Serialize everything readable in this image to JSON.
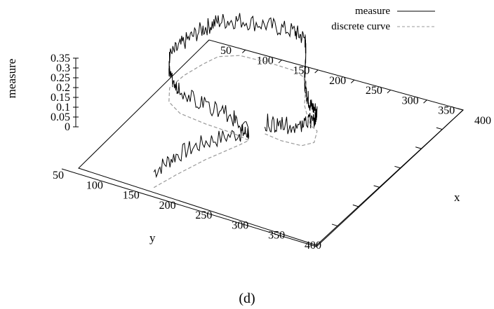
{
  "caption": "(d)",
  "chart_data": {
    "type": "line",
    "projection": "3d-surface-plot",
    "xlabel": "x",
    "ylabel": "y",
    "zlabel": "measure",
    "xlim": [
      50,
      400
    ],
    "ylim": [
      50,
      400
    ],
    "zlim": [
      0,
      0.35
    ],
    "x_ticks": [
      "50",
      "100",
      "150",
      "200",
      "250",
      "300",
      "350",
      "400"
    ],
    "y_ticks": [
      "50",
      "100",
      "150",
      "200",
      "250",
      "300",
      "350",
      "400"
    ],
    "z_ticks": [
      "0",
      "0.05",
      "0.1",
      "0.15",
      "0.2",
      "0.25",
      "0.3",
      "0.35"
    ],
    "legend": {
      "position": "top-right"
    },
    "series": [
      {
        "name": "measure",
        "style": "solid",
        "color": "#000000",
        "noisy": true,
        "points": [
          {
            "x": 155,
            "y": 60,
            "z": 0.08
          },
          {
            "x": 165,
            "y": 100,
            "z": 0.1
          },
          {
            "x": 180,
            "y": 150,
            "z": 0.09
          },
          {
            "x": 200,
            "y": 200,
            "z": 0.06
          },
          {
            "x": 205,
            "y": 215,
            "z": 0.04
          },
          {
            "x": 180,
            "y": 220,
            "z": 0.08
          },
          {
            "x": 140,
            "y": 222,
            "z": 0.1
          },
          {
            "x": 100,
            "y": 228,
            "z": 0.12
          },
          {
            "x": 75,
            "y": 245,
            "z": 0.15
          },
          {
            "x": 60,
            "y": 275,
            "z": 0.16
          },
          {
            "x": 62,
            "y": 310,
            "z": 0.17
          },
          {
            "x": 70,
            "y": 345,
            "z": 0.18
          },
          {
            "x": 78,
            "y": 370,
            "z": 0.18
          },
          {
            "x": 100,
            "y": 385,
            "z": 0.18
          },
          {
            "x": 140,
            "y": 387,
            "z": 0.19
          },
          {
            "x": 175,
            "y": 385,
            "z": 0.2
          },
          {
            "x": 195,
            "y": 376,
            "z": 0.2
          },
          {
            "x": 205,
            "y": 360,
            "z": 0.18
          },
          {
            "x": 215,
            "y": 340,
            "z": 0.15
          },
          {
            "x": 225,
            "y": 320,
            "z": 0.12
          },
          {
            "x": 240,
            "y": 300,
            "z": 0.1
          },
          {
            "x": 255,
            "y": 282,
            "z": 0.1
          },
          {
            "x": 268,
            "y": 275,
            "z": 0.1
          },
          {
            "x": 278,
            "y": 250,
            "z": 0.12
          },
          {
            "x": 268,
            "y": 236,
            "z": 0.1
          },
          {
            "x": 240,
            "y": 234,
            "z": 0.08
          },
          {
            "x": 215,
            "y": 238,
            "z": 0.06
          }
        ]
      },
      {
        "name": "discrete curve",
        "style": "dashed",
        "color": "#999999",
        "points": [
          {
            "x": 155,
            "y": 60,
            "z": 0.0
          },
          {
            "x": 165,
            "y": 100,
            "z": 0.0
          },
          {
            "x": 180,
            "y": 150,
            "z": 0.0
          },
          {
            "x": 200,
            "y": 200,
            "z": 0.0
          },
          {
            "x": 205,
            "y": 215,
            "z": 0.0
          },
          {
            "x": 180,
            "y": 220,
            "z": 0.0
          },
          {
            "x": 140,
            "y": 222,
            "z": 0.0
          },
          {
            "x": 100,
            "y": 228,
            "z": 0.0
          },
          {
            "x": 75,
            "y": 245,
            "z": 0.0
          },
          {
            "x": 60,
            "y": 275,
            "z": 0.0
          },
          {
            "x": 62,
            "y": 310,
            "z": 0.0
          },
          {
            "x": 70,
            "y": 345,
            "z": 0.0
          },
          {
            "x": 78,
            "y": 370,
            "z": 0.0
          },
          {
            "x": 100,
            "y": 385,
            "z": 0.0
          },
          {
            "x": 140,
            "y": 387,
            "z": 0.0
          },
          {
            "x": 175,
            "y": 385,
            "z": 0.0
          },
          {
            "x": 195,
            "y": 376,
            "z": 0.0
          },
          {
            "x": 205,
            "y": 360,
            "z": 0.0
          },
          {
            "x": 215,
            "y": 340,
            "z": 0.0
          },
          {
            "x": 225,
            "y": 320,
            "z": 0.0
          },
          {
            "x": 240,
            "y": 300,
            "z": 0.0
          },
          {
            "x": 255,
            "y": 282,
            "z": 0.0
          },
          {
            "x": 268,
            "y": 275,
            "z": 0.0
          },
          {
            "x": 278,
            "y": 250,
            "z": 0.0
          },
          {
            "x": 268,
            "y": 236,
            "z": 0.0
          },
          {
            "x": 240,
            "y": 234,
            "z": 0.0
          },
          {
            "x": 215,
            "y": 238,
            "z": 0.0
          }
        ]
      }
    ]
  }
}
